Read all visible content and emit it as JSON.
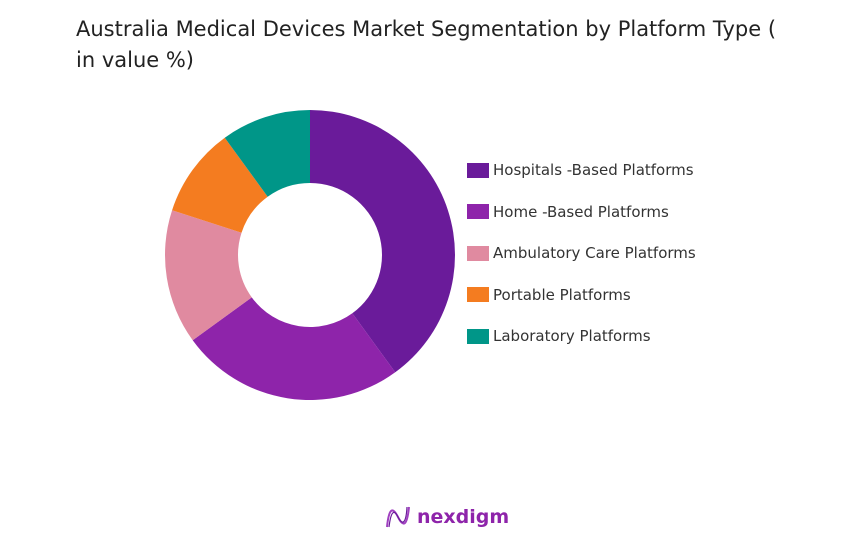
{
  "chart_data": {
    "type": "donut",
    "title": "Australia Medical Devices Market Segmentation by Platform Type ( in value %)",
    "categories": [
      "Hospitals -Based Platforms",
      "Home -Based Platforms",
      "Ambulatory Care Platforms",
      "Portable Platforms",
      "Laboratory Platforms"
    ],
    "values": [
      40,
      25,
      15,
      10,
      10
    ],
    "colors": [
      "#6a1b9a",
      "#8e24aa",
      "#e08aa0",
      "#f47c20",
      "#009688"
    ],
    "legend": "right"
  },
  "brand": {
    "name": "nexdigm"
  }
}
